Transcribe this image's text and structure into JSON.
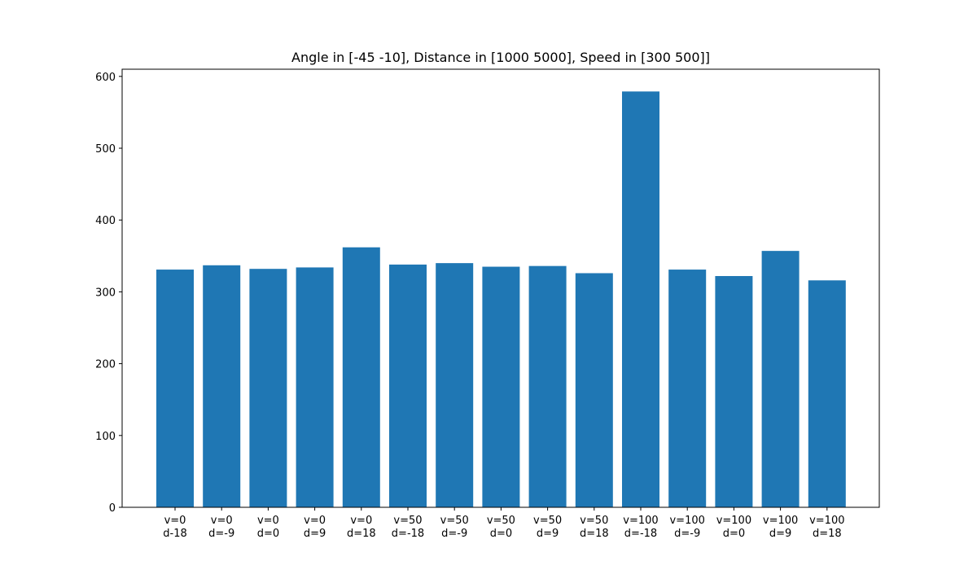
{
  "chart_data": {
    "type": "bar",
    "title": "Angle in [-45 -10], Distance in [1000 5000], Speed in [300 500]]",
    "xlabel": "",
    "ylabel": "",
    "categories": [
      [
        "v=0",
        "d-18"
      ],
      [
        "v=0",
        "d=-9"
      ],
      [
        "v=0",
        "d=0"
      ],
      [
        "v=0",
        "d=9"
      ],
      [
        "v=0",
        "d=18"
      ],
      [
        "v=50",
        "d=-18"
      ],
      [
        "v=50",
        "d=-9"
      ],
      [
        "v=50",
        "d=0"
      ],
      [
        "v=50",
        "d=9"
      ],
      [
        "v=50",
        "d=18"
      ],
      [
        "v=100",
        "d=-18"
      ],
      [
        "v=100",
        "d=-9"
      ],
      [
        "v=100",
        "d=0"
      ],
      [
        "v=100",
        "d=9"
      ],
      [
        "v=100",
        "d=18"
      ]
    ],
    "values": [
      331,
      337,
      332,
      334,
      362,
      338,
      340,
      335,
      336,
      326,
      579,
      331,
      322,
      357,
      316
    ],
    "ylim": [
      0,
      610
    ],
    "yticks": [
      0,
      100,
      200,
      300,
      400,
      500,
      600
    ],
    "bar_color": "#1f77b4",
    "grid": false,
    "legend": "none"
  }
}
